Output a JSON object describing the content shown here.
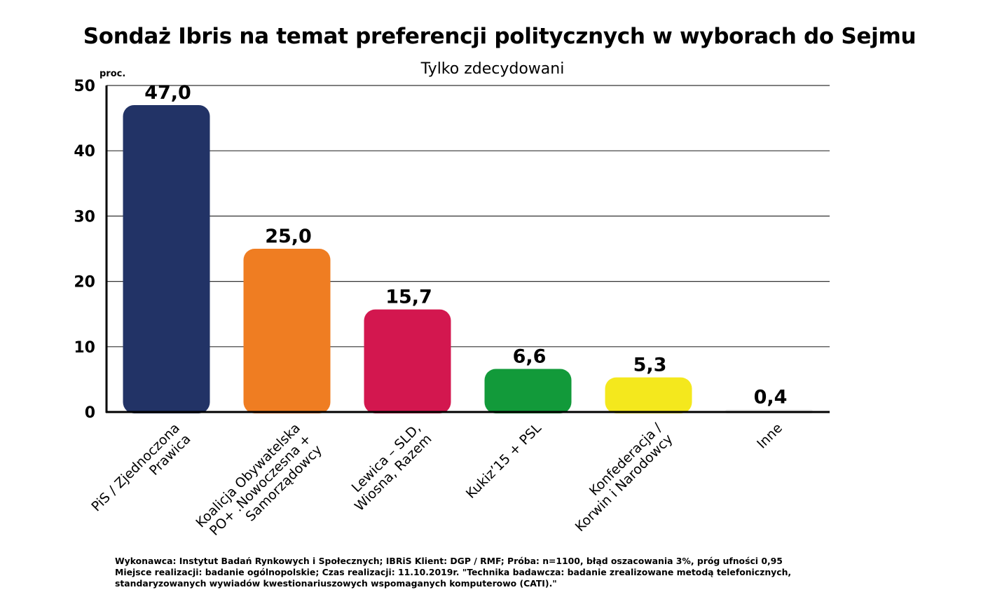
{
  "chart_data": {
    "type": "bar",
    "title": "Sondaż Ibris na temat preferencji politycznych w wyborach do Sejmu",
    "subtitle": "Tylko zdecydowani",
    "ylabel": "proc.",
    "ylim": [
      0,
      50
    ],
    "yticks": [
      "0",
      "10",
      "20",
      "30",
      "40",
      "50"
    ],
    "grid": true,
    "categories": [
      [
        "PiS / Zjednoczona",
        "Prawica"
      ],
      [
        "Koalicja Obywatelska",
        "PO+ .Nowoczesna +",
        "Samorządowcy"
      ],
      [
        "Lewica – SLD,",
        "Wiosna, Razem"
      ],
      [
        "Kukiz’15 + PSL"
      ],
      [
        "Konfederacja /",
        "Korwin i Narodowcy"
      ],
      [
        "Inne"
      ]
    ],
    "values": [
      47.0,
      25.0,
      15.7,
      6.6,
      5.3,
      0.4
    ],
    "value_labels": [
      "47,0",
      "25,0",
      "15,7",
      "6,6",
      "5,3",
      "0,4"
    ],
    "colors": [
      "#223366",
      "#ef7d22",
      "#d3174f",
      "#129a3a",
      "#f4e81d",
      "#eeeeee"
    ]
  },
  "footnote": [
    "Wykonawca: Instytut Badań Rynkowych i Społecznych; IBRiS Klient: DGP / RMF; Próba: n=1100, błąd oszacowania 3%, próg ufności 0,95",
    "Miejsce realizacji: badanie ogólnopolskie; Czas realizacji: 11.10.2019r.  \"Technika badawcza: badanie zrealizowane metodą telefonicznych,",
    "standaryzowanych wywiadów kwestionariuszowych wspomaganych komputerowo (CATI).\""
  ]
}
